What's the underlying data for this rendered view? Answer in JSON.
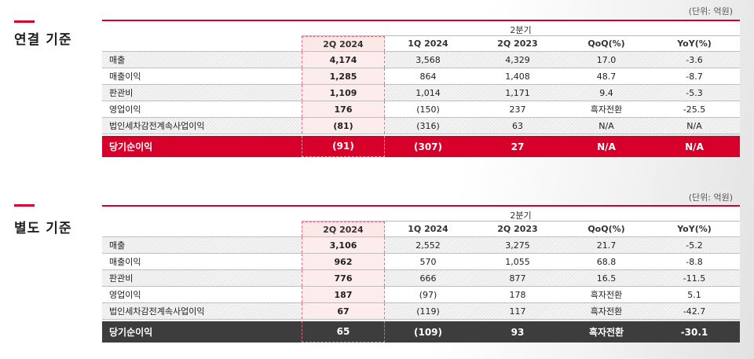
{
  "sections": [
    {
      "title": "연결 기준",
      "unit": "(단위: 억원)",
      "group_header": "2분기",
      "columns": [
        "2Q 2024",
        "1Q 2024",
        "2Q 2023",
        "QoQ(%)",
        "YoY(%)"
      ],
      "rows": [
        [
          "매출",
          "4,174",
          "3,568",
          "4,329",
          "17.0",
          "-3.6"
        ],
        [
          "매출이익",
          "1,285",
          "864",
          "1,408",
          "48.7",
          "-8.7"
        ],
        [
          "판관비",
          "1,109",
          "1,014",
          "1,171",
          "9.4",
          "-5.3"
        ],
        [
          "영업이익",
          "176",
          "(150)",
          "237",
          "흑자전환",
          "-25.5"
        ],
        [
          "법인세차감전계속사업이익",
          "(81)",
          "(316)",
          "63",
          "N/A",
          "N/A"
        ]
      ],
      "total": [
        "당기순이익",
        "(91)",
        "(307)",
        "27",
        "N/A",
        "N/A"
      ]
    },
    {
      "title": "별도 기준",
      "unit": "(단위: 억원)",
      "group_header": "2분기",
      "columns": [
        "2Q 2024",
        "1Q 2024",
        "2Q 2023",
        "QoQ(%)",
        "YoY(%)"
      ],
      "rows": [
        [
          "매출",
          "3,106",
          "2,552",
          "3,275",
          "21.7",
          "-5.2"
        ],
        [
          "매출이익",
          "962",
          "570",
          "1,055",
          "68.8",
          "-8.8"
        ],
        [
          "판관비",
          "776",
          "666",
          "877",
          "16.5",
          "-11.5"
        ],
        [
          "영업이익",
          "187",
          "(97)",
          "178",
          "흑자전환",
          "5.1"
        ],
        [
          "법인세차감전계속사업이익",
          "67",
          "(119)",
          "117",
          "흑자전환",
          "-42.7"
        ]
      ],
      "total": [
        "당기순이익",
        "65",
        "(109)",
        "93",
        "흑자전환",
        "-30.1"
      ]
    }
  ]
}
